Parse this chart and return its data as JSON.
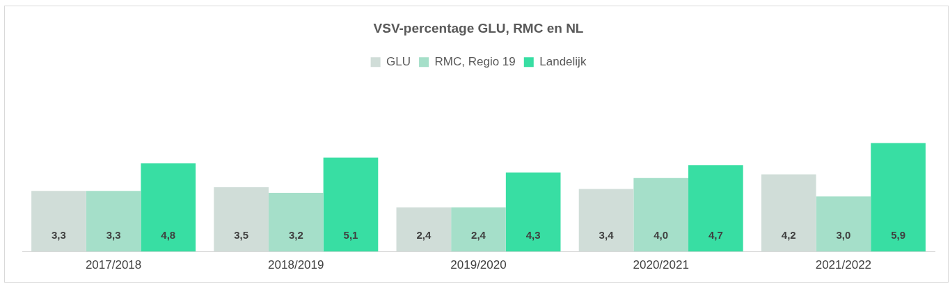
{
  "chart_data": {
    "type": "bar",
    "title": "VSV-percentage GLU, RMC en NL",
    "categories": [
      "2017/2018",
      "2018/2019",
      "2019/2020",
      "2020/2021",
      "2021/2022"
    ],
    "series": [
      {
        "name": "GLU",
        "color": "#d0ddd8",
        "values": [
          3.3,
          3.5,
          2.4,
          3.4,
          4.2
        ],
        "value_labels": [
          "3,3",
          "3,5",
          "2,4",
          "3,4",
          "4,2"
        ]
      },
      {
        "name": "RMC, Regio 19",
        "color": "#a5dfc9",
        "values": [
          3.3,
          3.2,
          2.4,
          4.0,
          3.0
        ],
        "value_labels": [
          "3,3",
          "3,2",
          "2,4",
          "4,0",
          "3,0"
        ]
      },
      {
        "name": "Landelijk",
        "color": "#38dea3",
        "values": [
          4.8,
          5.1,
          4.3,
          4.7,
          5.9
        ],
        "value_labels": [
          "4,8",
          "5,1",
          "4,3",
          "4,7",
          "5,9"
        ]
      }
    ],
    "legend": "top"
  }
}
